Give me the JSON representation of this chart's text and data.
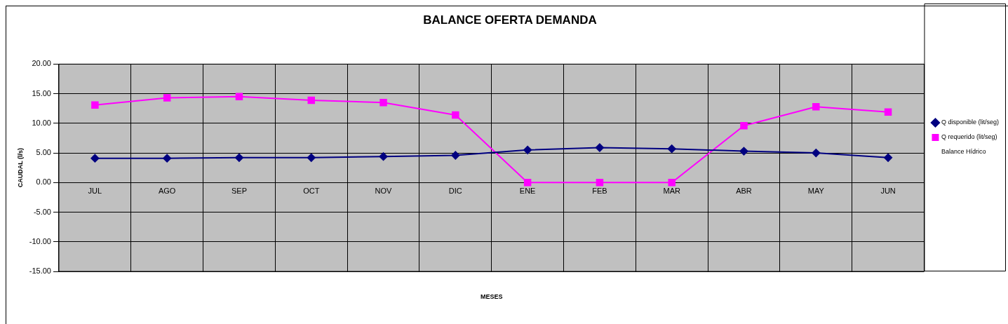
{
  "chart_data": {
    "type": "line",
    "title": "BALANCE OFERTA DEMANDA",
    "xlabel": "MESES",
    "ylabel": "CAUDAL (l/s)",
    "categories": [
      "JUL",
      "AGO",
      "SEP",
      "OCT",
      "NOV",
      "DIC",
      "ENE",
      "FEB",
      "MAR",
      "ABR",
      "MAY",
      "JUN"
    ],
    "series": [
      {
        "name": "Q disponible (lit/seg)",
        "color": "#000080",
        "marker": "diamond",
        "values": [
          4.1,
          4.1,
          4.2,
          4.2,
          4.4,
          4.6,
          5.5,
          5.9,
          5.7,
          5.3,
          5.0,
          4.2
        ]
      },
      {
        "name": "Q requerido (lit/seg)",
        "color": "#ff00ff",
        "marker": "square",
        "values": [
          13.1,
          14.3,
          14.5,
          13.9,
          13.5,
          11.4,
          0,
          0,
          0,
          9.6,
          12.8,
          11.9
        ]
      },
      {
        "name": "Balance Hídrico",
        "values": [
          null,
          null,
          null,
          null,
          null,
          null,
          null,
          null,
          null,
          null,
          null,
          null
        ]
      }
    ],
    "ylim": [
      -15,
      20
    ],
    "yticks": [
      {
        "value": -15,
        "label": "-15.00"
      },
      {
        "value": -10,
        "label": "-10.00"
      },
      {
        "value": -5,
        "label": "-5.00"
      },
      {
        "value": 0,
        "label": "0.00"
      },
      {
        "value": 5,
        "label": "5.00"
      },
      {
        "value": 10,
        "label": "10.00"
      },
      {
        "value": 15,
        "label": "15.00"
      },
      {
        "value": 20,
        "label": "20.00"
      }
    ],
    "grid": true,
    "legend": "right",
    "line_style": "solid"
  }
}
